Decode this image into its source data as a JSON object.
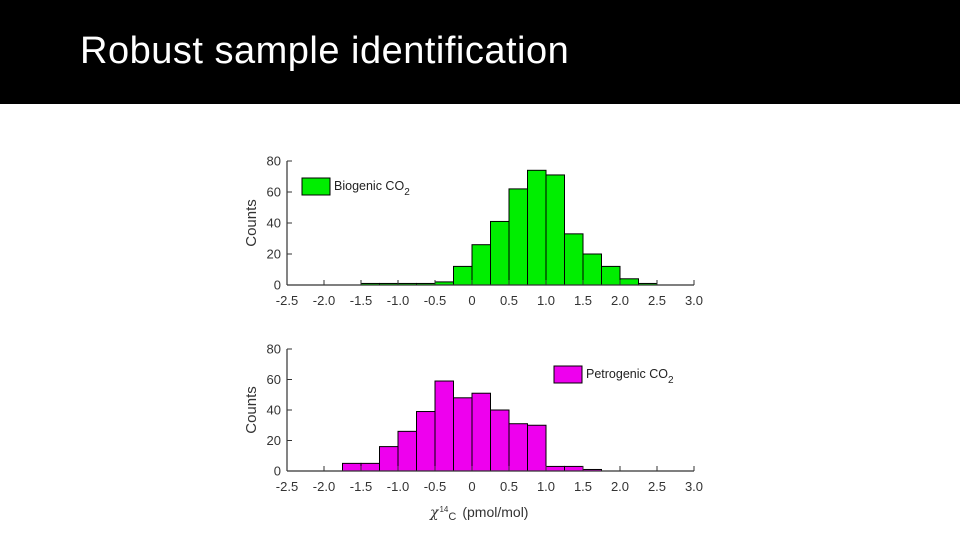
{
  "slide": {
    "title": "Robust sample identification"
  },
  "chart_data": [
    {
      "type": "bar",
      "id": "biogenic",
      "ylabel": "Counts",
      "xlabel": "",
      "xlim": [
        -2.5,
        3.0
      ],
      "ylim": [
        0,
        80
      ],
      "xticks": [
        "-2.5",
        "-2.0",
        "-1.5",
        "-1.0",
        "-0.5",
        "0",
        "0.5",
        "1.0",
        "1.5",
        "2.0",
        "2.5",
        "3.0"
      ],
      "yticks": [
        "0",
        "20",
        "40",
        "60",
        "80"
      ],
      "legend": {
        "label": "Biogenic CO",
        "sub": "2",
        "placement": "top-left"
      },
      "color": "#00ee00",
      "bin_edges": [
        -2.5,
        -2.25,
        -2.0,
        -1.75,
        -1.5,
        -1.25,
        -1.0,
        -0.75,
        -0.5,
        -0.25,
        0.0,
        0.25,
        0.5,
        0.75,
        1.0,
        1.25,
        1.5,
        1.75,
        2.0,
        2.25,
        2.5,
        2.75,
        3.0
      ],
      "values": [
        0,
        0,
        0,
        0,
        1,
        1,
        1,
        1,
        2,
        12,
        26,
        41,
        62,
        74,
        71,
        33,
        20,
        12,
        4,
        1,
        0,
        0
      ]
    },
    {
      "type": "bar",
      "id": "petrogenic",
      "ylabel": "Counts",
      "xlim": [
        -2.5,
        3.0
      ],
      "ylim": [
        0,
        80
      ],
      "xticks": [
        "-2.5",
        "-2.0",
        "-1.5",
        "-1.0",
        "-0.5",
        "0",
        "0.5",
        "1.0",
        "1.5",
        "2.0",
        "2.5",
        "3.0"
      ],
      "yticks": [
        "0",
        "20",
        "40",
        "60",
        "80"
      ],
      "legend": {
        "label": "Petrogenic CO",
        "sub": "2",
        "placement": "top-right"
      },
      "xlabel_parts": {
        "chi": "χ",
        "sup": "14",
        "sub": "C",
        "unit": "(pmol/mol)"
      },
      "color": "#ee00ee",
      "bin_edges": [
        -2.5,
        -2.25,
        -2.0,
        -1.75,
        -1.5,
        -1.25,
        -1.0,
        -0.75,
        -0.5,
        -0.25,
        0.0,
        0.25,
        0.5,
        0.75,
        1.0,
        1.25,
        1.5,
        1.75,
        2.0,
        2.25,
        2.5,
        2.75,
        3.0
      ],
      "values": [
        0,
        0,
        0,
        5,
        5,
        16,
        26,
        39,
        59,
        48,
        51,
        40,
        31,
        30,
        3,
        3,
        1,
        0,
        0,
        0,
        0,
        0
      ]
    }
  ]
}
